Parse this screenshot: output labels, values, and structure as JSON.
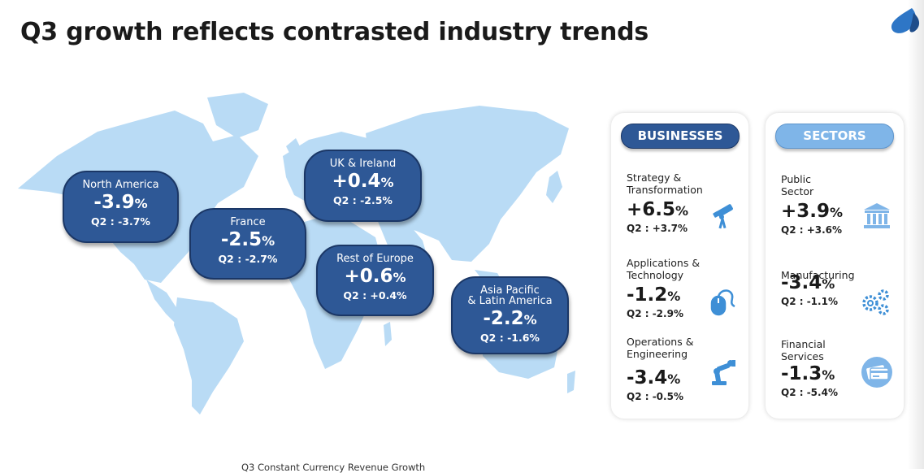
{
  "title": "Q3 growth reflects contrasted industry trends",
  "colors": {
    "bubble": "#2e5896",
    "map": "#b9dbf5",
    "accent_light": "#7fb5e8",
    "icon": "#3e8fd6"
  },
  "regions": [
    {
      "name": "North America",
      "value": "-3.9",
      "unit": "%",
      "q2": "Q2 : -3.7%"
    },
    {
      "name": "France",
      "value": "-2.5",
      "unit": "%",
      "q2": "Q2 : -2.7%"
    },
    {
      "name": "UK & Ireland",
      "value": "+0.4",
      "unit": "%",
      "q2": "Q2 : -2.5%"
    },
    {
      "name": "Rest of Europe",
      "value": "+0.6",
      "unit": "%",
      "q2": "Q2 : +0.4%"
    },
    {
      "name": "Asia Pacific",
      "name2": "& Latin America",
      "value": "-2.2",
      "unit": "%",
      "q2": "Q2 : -1.6%"
    }
  ],
  "businesses": {
    "header": "BUSINESSES",
    "items": [
      {
        "line1": "Strategy &",
        "line2": "Transformation",
        "value": "+6.5",
        "unit": "%",
        "q2": "Q2 : +3.7%",
        "icon": "telescope-icon"
      },
      {
        "line1": "Applications &",
        "line2": "Technology",
        "value": "-1.2",
        "unit": "%",
        "q2": "Q2 : -2.9%",
        "icon": "mouse-icon"
      },
      {
        "line1": "Operations &",
        "line2": "Engineering",
        "value": "-3.4",
        "unit": "%",
        "q2": "Q2 : -0.5%",
        "icon": "robot-arm-icon"
      }
    ]
  },
  "sectors": {
    "header": "SECTORS",
    "items": [
      {
        "line1": "Public",
        "line2": "Sector",
        "value": "+3.9",
        "unit": "%",
        "q2": "Q2 : +3.6%",
        "icon": "bank-icon"
      },
      {
        "line1": "Manufacturing",
        "line2": "",
        "value": "-3.4",
        "unit": "%",
        "q2": "Q2 : -1.1%",
        "icon": "gears-icon"
      },
      {
        "line1": "Financial",
        "line2": "Services",
        "value": "-1.3",
        "unit": "%",
        "q2": "Q2 : -5.4%",
        "icon": "credit-card-icon"
      }
    ]
  },
  "caption": "Q3 Constant Currency Revenue Growth"
}
